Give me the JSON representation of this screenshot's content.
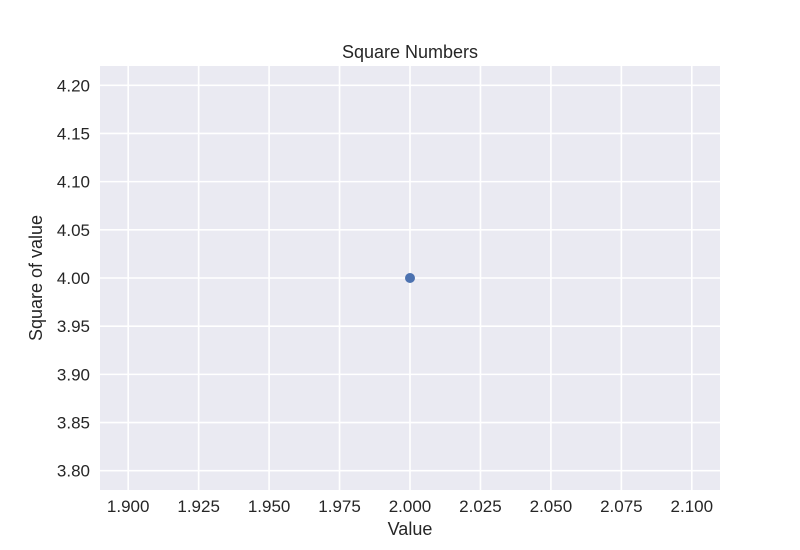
{
  "chart_data": {
    "type": "scatter",
    "title": "Square Numbers",
    "xlabel": "Value",
    "ylabel": "Square of value",
    "xlim": [
      1.89,
      2.11
    ],
    "ylim": [
      3.78,
      4.22
    ],
    "x_ticks": [
      1.9,
      1.925,
      1.95,
      1.975,
      2.0,
      2.025,
      2.05,
      2.075,
      2.1
    ],
    "x_tick_labels": [
      "1.900",
      "1.925",
      "1.950",
      "1.975",
      "2.000",
      "2.025",
      "2.050",
      "2.075",
      "2.100"
    ],
    "y_ticks": [
      3.8,
      3.85,
      3.9,
      3.95,
      4.0,
      4.05,
      4.1,
      4.15,
      4.2
    ],
    "y_tick_labels": [
      "3.80",
      "3.85",
      "3.90",
      "3.95",
      "4.00",
      "4.05",
      "4.10",
      "4.15",
      "4.20"
    ],
    "series": [
      {
        "points": [
          {
            "x": 2.0,
            "y": 4.0
          }
        ]
      }
    ],
    "grid": true,
    "colors": {
      "plot_background": "#eaeaf2",
      "grid": "#ffffff",
      "marker": "#4c72b0",
      "text": "#262626"
    }
  }
}
